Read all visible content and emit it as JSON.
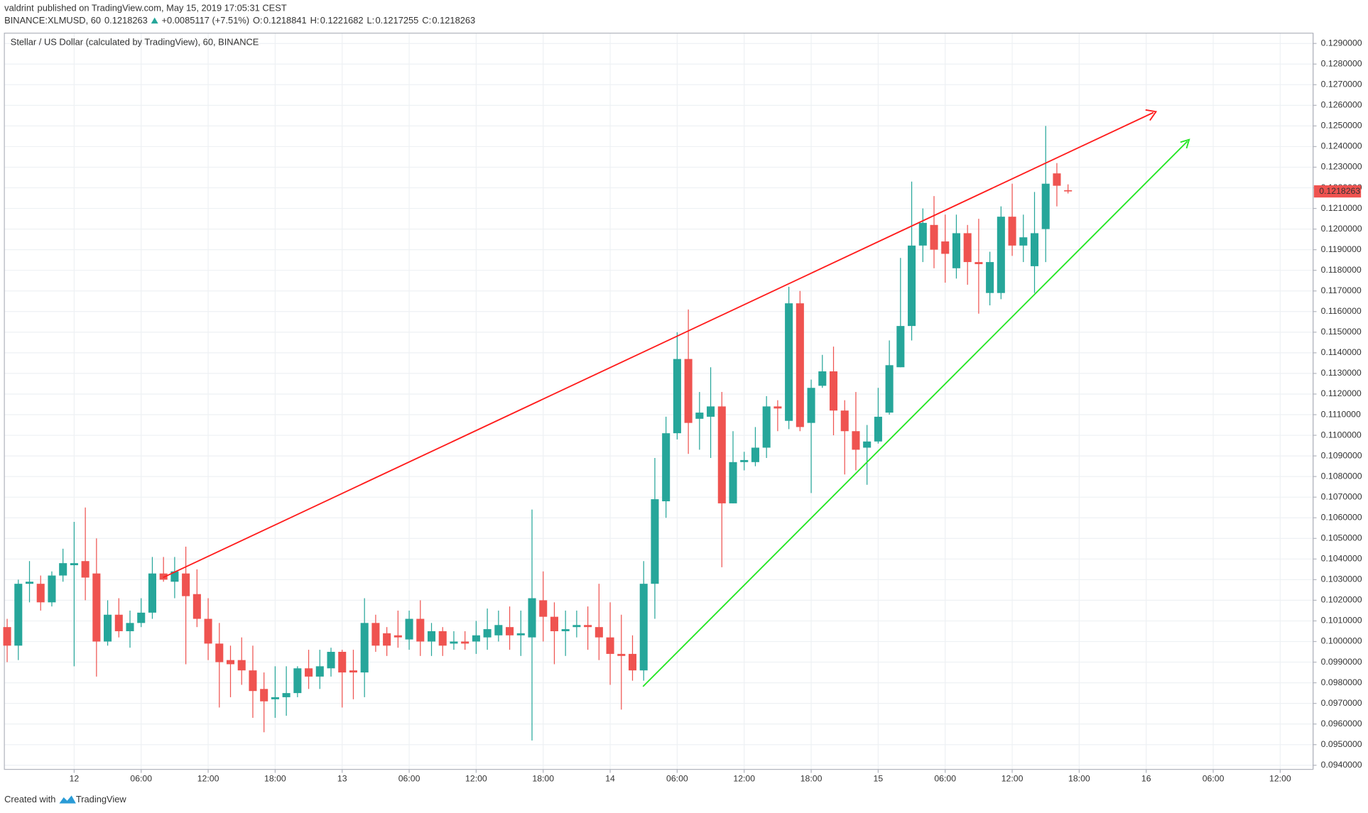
{
  "header": {
    "author": "valdrint",
    "published": "published on TradingView.com, May 15, 2019 17:05:31 CEST",
    "symbol": "BINANCE:XLMUSD, 60",
    "change": "+0.0085117 (+7.51%)",
    "o_label": "O:",
    "h_label": "H:",
    "l_label": "L:",
    "c_label": "C:"
  },
  "footer": {
    "created": "Created with",
    "brand": "TradingView"
  },
  "chart_data": {
    "type": "candlestick",
    "title": "Stellar / US Dollar (calculated by TradingView), 60, BINANCE",
    "up_color": "#26a69a",
    "down_color": "#ef5350",
    "grid": true,
    "x": [
      -6,
      -5,
      -4,
      -3,
      -2,
      -1,
      0,
      1,
      2,
      3,
      4,
      5,
      6,
      7,
      8,
      9,
      10,
      11,
      12,
      13,
      14,
      15,
      16,
      17,
      18,
      19,
      20,
      21,
      22,
      23,
      24,
      25,
      26,
      27,
      28,
      29,
      30,
      31,
      32,
      33,
      34,
      35,
      36,
      37,
      38,
      39,
      40,
      41,
      42,
      43,
      44,
      45,
      46,
      47,
      48,
      49,
      50,
      51,
      52,
      53,
      54,
      55,
      56,
      57,
      58,
      59,
      60,
      61,
      62,
      63,
      64,
      65,
      66,
      67,
      68,
      69,
      70,
      71,
      72,
      73,
      74,
      75,
      76,
      77,
      78,
      79,
      80,
      81,
      82,
      83,
      84,
      85,
      86,
      87,
      88,
      89
    ],
    "open": [
      0.1007,
      0.0998,
      0.1028,
      0.1028,
      0.1019,
      0.1032,
      0.1037,
      0.1039,
      0.1033,
      0.1,
      0.1013,
      0.1005,
      0.1009,
      0.1014,
      0.1033,
      0.1029,
      0.1033,
      0.1023,
      0.1011,
      0.0999,
      0.0991,
      0.0991,
      0.0986,
      0.0977,
      0.0972,
      0.0973,
      0.0975,
      0.0987,
      0.0983,
      0.0987,
      0.0995,
      0.0986,
      0.0985,
      0.1009,
      0.1004,
      0.1003,
      0.1001,
      0.1011,
      0.1,
      0.1005,
      0.0999,
      0.1,
      0.1,
      0.1002,
      0.1003,
      0.1007,
      0.1003,
      0.1002,
      0.102,
      0.1012,
      0.1005,
      0.1007,
      0.1008,
      0.1007,
      0.1002,
      0.0994,
      0.0994,
      0.0986,
      0.1028,
      0.1068,
      0.1101,
      0.1137,
      0.1108,
      0.1109,
      0.1114,
      0.1067,
      0.1087,
      0.1087,
      0.1094,
      0.1114,
      0.1107,
      0.1164,
      0.1106,
      0.1124,
      0.1131,
      0.1112,
      0.1102,
      0.1094,
      0.1097,
      0.1111,
      0.1133,
      0.1153,
      0.1192,
      0.1202,
      0.1194,
      0.1181,
      0.1198,
      0.1184,
      0.1169,
      0.1169,
      0.1206,
      0.1192,
      0.1182,
      0.12,
      0.1227,
      0.1218841
    ],
    "high": [
      0.1011,
      0.103,
      0.1039,
      0.1032,
      0.1034,
      0.1045,
      0.1058,
      0.1065,
      0.105,
      0.102,
      0.1021,
      0.1015,
      0.1021,
      0.1041,
      0.1041,
      0.1041,
      0.1046,
      0.1035,
      0.1021,
      0.1009,
      0.0998,
      0.1002,
      0.0998,
      0.0985,
      0.0988,
      0.0988,
      0.0988,
      0.0996,
      0.0996,
      0.0997,
      0.0996,
      0.0996,
      0.1021,
      0.1013,
      0.1007,
      0.1015,
      0.1015,
      0.102,
      0.1009,
      0.1007,
      0.1005,
      0.1005,
      0.101,
      0.1016,
      0.1015,
      0.1017,
      0.1015,
      0.1064,
      0.1034,
      0.1019,
      0.1015,
      0.1015,
      0.1017,
      0.1028,
      0.1019,
      0.1013,
      0.1003,
      0.1039,
      0.1089,
      0.1109,
      0.115,
      0.1161,
      0.1121,
      0.1133,
      0.1121,
      0.1102,
      0.1092,
      0.1104,
      0.1119,
      0.1117,
      0.1172,
      0.117,
      0.1127,
      0.1139,
      0.1143,
      0.1117,
      0.1121,
      0.1105,
      0.1123,
      0.1146,
      0.1186,
      0.1223,
      0.121,
      0.1216,
      0.1207,
      0.1207,
      0.1202,
      0.1205,
      0.1189,
      0.1211,
      0.1222,
      0.1207,
      0.1218,
      0.125,
      0.1232,
      0.1221682
    ],
    "low": [
      0.099,
      0.0991,
      0.1019,
      0.1015,
      0.1017,
      0.1029,
      0.0988,
      0.102,
      0.0983,
      0.0998,
      0.1002,
      0.0997,
      0.1007,
      0.1011,
      0.1029,
      0.1021,
      0.0989,
      0.1007,
      0.0991,
      0.0968,
      0.0973,
      0.0979,
      0.0963,
      0.0956,
      0.0963,
      0.0964,
      0.0973,
      0.0977,
      0.0977,
      0.0983,
      0.0968,
      0.0972,
      0.0973,
      0.0995,
      0.0993,
      0.0997,
      0.0996,
      0.0993,
      0.0993,
      0.0993,
      0.0996,
      0.0996,
      0.0994,
      0.0996,
      0.1,
      0.0996,
      0.0993,
      0.0952,
      0.1,
      0.0989,
      0.0993,
      0.1002,
      0.0996,
      0.0991,
      0.0979,
      0.0967,
      0.0981,
      0.0981,
      0.1011,
      0.106,
      0.1098,
      0.1091,
      0.1093,
      0.1089,
      0.1036,
      0.1067,
      0.1083,
      0.1085,
      0.1089,
      0.1102,
      0.1103,
      0.1102,
      0.1072,
      0.1123,
      0.11,
      0.1081,
      0.1083,
      0.1076,
      0.1096,
      0.111,
      0.1133,
      0.1146,
      0.1184,
      0.1181,
      0.1174,
      0.1176,
      0.1173,
      0.1159,
      0.1163,
      0.1166,
      0.1187,
      0.1184,
      0.1169,
      0.1184,
      0.1211,
      0.1217255
    ],
    "close": [
      0.0998,
      0.1028,
      0.1029,
      0.1019,
      0.1032,
      0.1038,
      0.1038,
      0.1031,
      0.1,
      0.1013,
      0.1005,
      0.1009,
      0.1014,
      0.1033,
      0.103,
      0.1034,
      0.1022,
      0.1011,
      0.0999,
      0.099,
      0.0989,
      0.0986,
      0.0976,
      0.0971,
      0.0973,
      0.0975,
      0.0987,
      0.0983,
      0.0988,
      0.0995,
      0.0985,
      0.0985,
      0.1009,
      0.0998,
      0.0998,
      0.1002,
      0.1011,
      0.1,
      0.1005,
      0.0998,
      0.1,
      0.0999,
      0.1003,
      0.1006,
      0.1008,
      0.1003,
      0.1004,
      0.1021,
      0.1012,
      0.1005,
      0.1006,
      0.1008,
      0.1007,
      0.1002,
      0.0994,
      0.0993,
      0.0986,
      0.1028,
      0.1069,
      0.1101,
      0.1137,
      0.1106,
      0.1111,
      0.1114,
      0.1067,
      0.1087,
      0.1088,
      0.1094,
      0.1114,
      0.1113,
      0.1164,
      0.1104,
      0.1123,
      0.1131,
      0.1112,
      0.1102,
      0.1093,
      0.1097,
      0.1109,
      0.1134,
      0.1153,
      0.1192,
      0.1203,
      0.119,
      0.1188,
      0.1198,
      0.1184,
      0.1183,
      0.1184,
      0.1206,
      0.1192,
      0.1196,
      0.1198,
      0.1222,
      0.1221,
      0.1218263
    ],
    "xlim": [
      -6.25,
      110.94
    ],
    "ylim": [
      0.0938,
      0.1295
    ],
    "xticks": [
      {
        "value": 0,
        "label": "12"
      },
      {
        "value": 6,
        "label": "06:00"
      },
      {
        "value": 12,
        "label": "12:00"
      },
      {
        "value": 18,
        "label": "18:00"
      },
      {
        "value": 24,
        "label": "13"
      },
      {
        "value": 30,
        "label": "06:00"
      },
      {
        "value": 36,
        "label": "12:00"
      },
      {
        "value": 42,
        "label": "18:00"
      },
      {
        "value": 48,
        "label": "14"
      },
      {
        "value": 54,
        "label": "06:00"
      },
      {
        "value": 60,
        "label": "12:00"
      },
      {
        "value": 66,
        "label": "18:00"
      },
      {
        "value": 72,
        "label": "15"
      },
      {
        "value": 78,
        "label": "06:00"
      },
      {
        "value": 84,
        "label": "12:00"
      },
      {
        "value": 90,
        "label": "18:00"
      },
      {
        "value": 96,
        "label": "16"
      },
      {
        "value": 102,
        "label": "06:00"
      },
      {
        "value": 108,
        "label": "12:00"
      }
    ],
    "yticks": [
      {
        "value": 0.094,
        "label": "0.0940000"
      },
      {
        "value": 0.095,
        "label": "0.0950000"
      },
      {
        "value": 0.096,
        "label": "0.0960000"
      },
      {
        "value": 0.097,
        "label": "0.0970000"
      },
      {
        "value": 0.098,
        "label": "0.0980000"
      },
      {
        "value": 0.099,
        "label": "0.0990000"
      },
      {
        "value": 0.1,
        "label": "0.1000000"
      },
      {
        "value": 0.101,
        "label": "0.1010000"
      },
      {
        "value": 0.102,
        "label": "0.1020000"
      },
      {
        "value": 0.103,
        "label": "0.1030000"
      },
      {
        "value": 0.104,
        "label": "0.1040000"
      },
      {
        "value": 0.105,
        "label": "0.1050000"
      },
      {
        "value": 0.106,
        "label": "0.1060000"
      },
      {
        "value": 0.107,
        "label": "0.1070000"
      },
      {
        "value": 0.108,
        "label": "0.1080000"
      },
      {
        "value": 0.109,
        "label": "0.1090000"
      },
      {
        "value": 0.11,
        "label": "0.1100000"
      },
      {
        "value": 0.111,
        "label": "0.1110000"
      },
      {
        "value": 0.112,
        "label": "0.1120000"
      },
      {
        "value": 0.113,
        "label": "0.1130000"
      },
      {
        "value": 0.114,
        "label": "0.1140000"
      },
      {
        "value": 0.115,
        "label": "0.1150000"
      },
      {
        "value": 0.116,
        "label": "0.1160000"
      },
      {
        "value": 0.117,
        "label": "0.1170000"
      },
      {
        "value": 0.118,
        "label": "0.1180000"
      },
      {
        "value": 0.119,
        "label": "0.1190000"
      },
      {
        "value": 0.12,
        "label": "0.1200000"
      },
      {
        "value": 0.121,
        "label": "0.1210000"
      },
      {
        "value": 0.122,
        "label": "0.1220000"
      },
      {
        "value": 0.123,
        "label": "0.1230000"
      },
      {
        "value": 0.124,
        "label": "0.1240000"
      },
      {
        "value": 0.125,
        "label": "0.1250000"
      },
      {
        "value": 0.126,
        "label": "0.1260000"
      },
      {
        "value": 0.127,
        "label": "0.1270000"
      },
      {
        "value": 0.128,
        "label": "0.1280000"
      },
      {
        "value": 0.129,
        "label": "0.1290000"
      }
    ]
  }
}
